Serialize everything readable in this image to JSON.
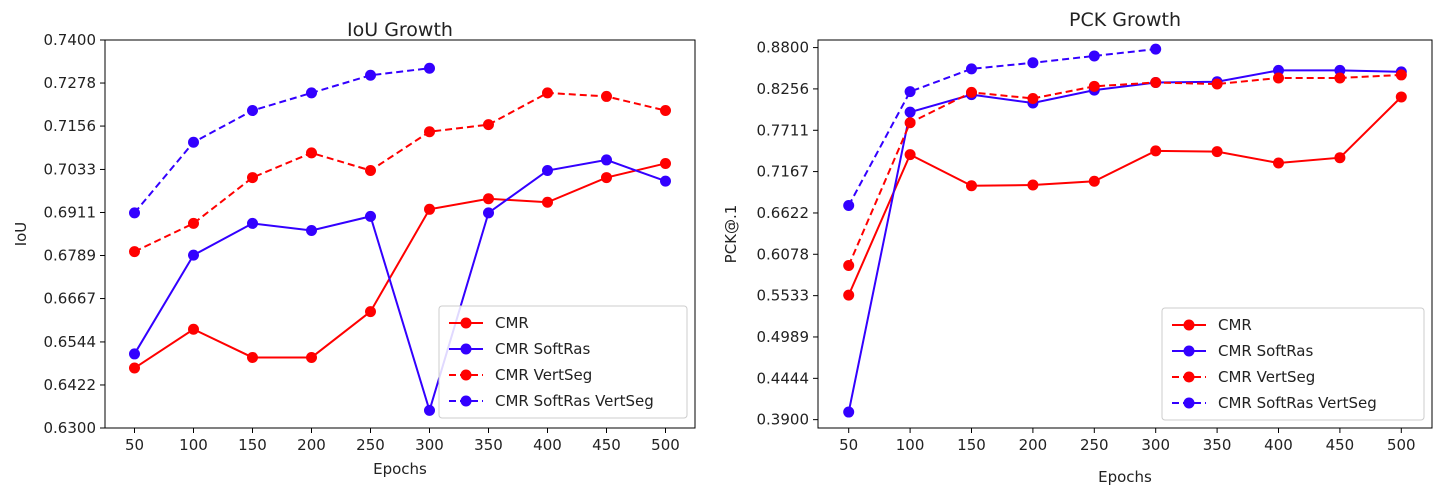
{
  "chart_data": [
    {
      "type": "line",
      "title": "IoU Growth",
      "xlabel": "Epochs",
      "ylabel": "IoU",
      "x": [
        50,
        100,
        150,
        200,
        250,
        300,
        350,
        400,
        450,
        500
      ],
      "xticks": [
        "50",
        "100",
        "150",
        "200",
        "250",
        "300",
        "350",
        "400",
        "450",
        "500"
      ],
      "yticks": [
        "0.6300",
        "0.6422",
        "0.6544",
        "0.6667",
        "0.6789",
        "0.6911",
        "0.7033",
        "0.7156",
        "0.7278",
        "0.7400"
      ],
      "ylim": [
        0.63,
        0.74
      ],
      "xlim": [
        25,
        525
      ],
      "grid": false,
      "legend_position": "lower-right",
      "series": [
        {
          "name": "CMR",
          "color": "#ff0000",
          "dash": false,
          "values": [
            0.647,
            0.658,
            0.65,
            0.65,
            0.663,
            0.692,
            0.695,
            0.694,
            0.701,
            0.705
          ]
        },
        {
          "name": "CMR SoftRas",
          "color": "#3300ff",
          "dash": false,
          "values": [
            0.651,
            0.679,
            0.688,
            0.686,
            0.69,
            0.635,
            0.691,
            0.703,
            0.706,
            0.7
          ]
        },
        {
          "name": "CMR VertSeg",
          "color": "#ff0000",
          "dash": true,
          "values": [
            0.68,
            0.688,
            0.701,
            0.708,
            0.703,
            0.714,
            0.716,
            0.725,
            0.724,
            0.72
          ]
        },
        {
          "name": "CMR SoftRas VertSeg",
          "color": "#3300ff",
          "dash": true,
          "values": [
            0.691,
            0.711,
            0.72,
            0.725,
            0.73,
            0.732,
            null,
            null,
            null,
            null
          ]
        }
      ]
    },
    {
      "type": "line",
      "title": "PCK Growth",
      "xlabel": "Epochs",
      "ylabel": "PCK@.1",
      "x": [
        50,
        100,
        150,
        200,
        250,
        300,
        350,
        400,
        450,
        500
      ],
      "xticks": [
        "50",
        "100",
        "150",
        "200",
        "250",
        "300",
        "350",
        "400",
        "450",
        "500"
      ],
      "yticks": [
        "0.3900",
        "0.4444",
        "0.4989",
        "0.5533",
        "0.6078",
        "0.6622",
        "0.7167",
        "0.7711",
        "0.8256",
        "0.8800"
      ],
      "ylim": [
        0.379,
        0.89
      ],
      "xlim": [
        25,
        525
      ],
      "grid": false,
      "legend_position": "lower-right",
      "series": [
        {
          "name": "CMR",
          "color": "#ff0000",
          "dash": false,
          "values": [
            0.554,
            0.739,
            0.698,
            0.699,
            0.704,
            0.744,
            0.743,
            0.728,
            0.735,
            0.815
          ]
        },
        {
          "name": "CMR SoftRas",
          "color": "#3300ff",
          "dash": false,
          "values": [
            0.4,
            0.795,
            0.818,
            0.807,
            0.824,
            0.834,
            0.835,
            0.85,
            0.85,
            0.848
          ]
        },
        {
          "name": "CMR VertSeg",
          "color": "#ff0000",
          "dash": true,
          "values": [
            0.593,
            0.781,
            0.821,
            0.813,
            0.829,
            0.834,
            0.832,
            0.84,
            0.84,
            0.844
          ]
        },
        {
          "name": "CMR SoftRas VertSeg",
          "color": "#3300ff",
          "dash": true,
          "values": [
            0.672,
            0.822,
            0.852,
            0.86,
            0.869,
            0.878,
            null,
            null,
            null,
            null
          ]
        }
      ]
    }
  ]
}
